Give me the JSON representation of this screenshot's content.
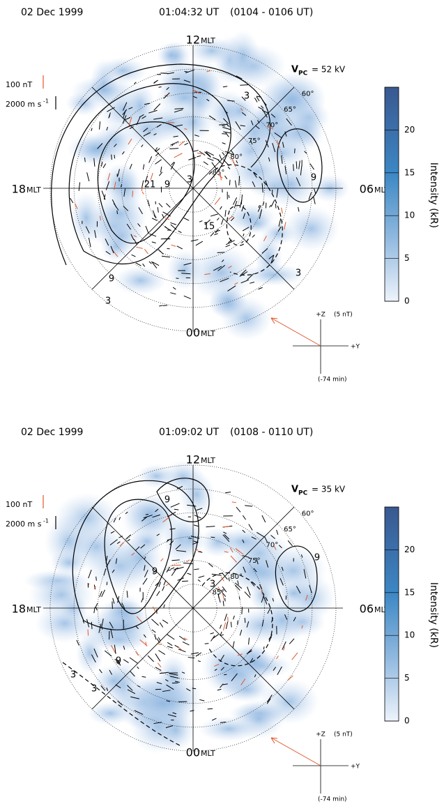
{
  "panels": [
    {
      "date": "02 Dec 1999",
      "time": "01:04:32 UT",
      "interval": "(0104 - 0106 UT)",
      "mlt": {
        "top": "12",
        "bottom": "00",
        "left": "18",
        "right": "06",
        "unit": "MLT"
      },
      "vpc": {
        "symbol": "V",
        "sub": "PC",
        "text": "= 52 kV"
      },
      "scale": {
        "field": "100 nT",
        "velocity": "2000 m s",
        "velocity_exp": "-1"
      },
      "lat_labels": [
        "60°",
        "65°",
        "70°",
        "75°",
        "80°",
        "85°"
      ],
      "contour_labels": [
        "3",
        "9",
        "3",
        "9",
        "21",
        "15",
        "9",
        "3",
        "3"
      ],
      "colorbar": {
        "label": "Intensity (kR)",
        "lim": [
          0,
          25
        ],
        "ticks": [
          0,
          5,
          10,
          15,
          20
        ]
      },
      "imf": {
        "z": "+Z",
        "z_scale": "(5 nT)",
        "y": "+Y",
        "lag": "(-74 min)"
      }
    },
    {
      "date": "02 Dec 1999",
      "time": "01:09:02 UT",
      "interval": "(0108 - 0110 UT)",
      "mlt": {
        "top": "12",
        "bottom": "00",
        "left": "18",
        "right": "06",
        "unit": "MLT"
      },
      "vpc": {
        "symbol": "V",
        "sub": "PC",
        "text": "= 35 kV"
      },
      "scale": {
        "field": "100 nT",
        "velocity": "2000 m s",
        "velocity_exp": "-1"
      },
      "lat_labels": [
        "60°",
        "65°",
        "70°",
        "75°",
        "80°",
        "85°"
      ],
      "contour_labels": [
        "9",
        "9",
        "9",
        "3",
        "3",
        "3",
        "9"
      ],
      "colorbar": {
        "label": "Intensity (kR)",
        "lim": [
          0,
          25
        ],
        "ticks": [
          0,
          5,
          10,
          15,
          20
        ]
      },
      "imf": {
        "z": "+Z",
        "z_scale": "(5 nT)",
        "y": "+Y",
        "lag": "(-74 min)"
      }
    }
  ]
}
